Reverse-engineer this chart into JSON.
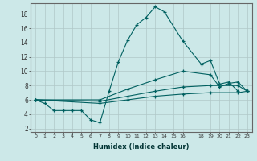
{
  "xlabel": "Humidex (Indice chaleur)",
  "background_color": "#cce8e8",
  "grid_color": "#b0c8c8",
  "line_color": "#006060",
  "xlim": [
    -0.5,
    23.5
  ],
  "ylim": [
    1.5,
    19.5
  ],
  "xticks": [
    0,
    1,
    2,
    3,
    4,
    5,
    6,
    7,
    8,
    9,
    10,
    11,
    12,
    13,
    14,
    15,
    16,
    18,
    19,
    20,
    21,
    22,
    23
  ],
  "yticks": [
    2,
    4,
    6,
    8,
    10,
    12,
    14,
    16,
    18
  ],
  "series1": [
    [
      0,
      6
    ],
    [
      1,
      5.5
    ],
    [
      2,
      4.5
    ],
    [
      3,
      4.5
    ],
    [
      4,
      4.5
    ],
    [
      5,
      4.5
    ],
    [
      6,
      3.2
    ],
    [
      7,
      2.8
    ],
    [
      8,
      7.2
    ],
    [
      9,
      11.3
    ],
    [
      10,
      14.3
    ],
    [
      11,
      16.5
    ],
    [
      12,
      17.5
    ],
    [
      13,
      19.0
    ],
    [
      14,
      18.3
    ],
    [
      16,
      14.2
    ],
    [
      18,
      11.0
    ],
    [
      19,
      11.5
    ],
    [
      20,
      8.2
    ],
    [
      21,
      8.5
    ],
    [
      22,
      7.2
    ]
  ],
  "series2": [
    [
      0,
      6
    ],
    [
      7,
      6.0
    ],
    [
      10,
      7.5
    ],
    [
      13,
      8.8
    ],
    [
      16,
      10.0
    ],
    [
      19,
      9.5
    ],
    [
      20,
      7.8
    ],
    [
      21,
      8.3
    ],
    [
      22,
      8.5
    ],
    [
      23,
      7.2
    ]
  ],
  "series3": [
    [
      0,
      6
    ],
    [
      7,
      5.8
    ],
    [
      10,
      6.5
    ],
    [
      13,
      7.2
    ],
    [
      16,
      7.8
    ],
    [
      19,
      8.0
    ],
    [
      22,
      8.0
    ],
    [
      23,
      7.2
    ]
  ],
  "series4": [
    [
      0,
      6
    ],
    [
      7,
      5.5
    ],
    [
      10,
      6.0
    ],
    [
      13,
      6.5
    ],
    [
      16,
      6.8
    ],
    [
      19,
      7.0
    ],
    [
      22,
      7.0
    ],
    [
      23,
      7.2
    ]
  ]
}
